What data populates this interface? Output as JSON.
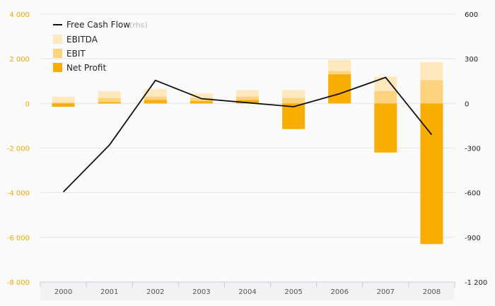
{
  "chart_data": {
    "type": "bar",
    "categories": [
      "2000",
      "2001",
      "2002",
      "2003",
      "2004",
      "2005",
      "2006",
      "2007",
      "2008"
    ],
    "series": [
      {
        "name": "EBITDA",
        "kind": "bar",
        "axis": "left",
        "color": "#fde9bd",
        "values": [
          300,
          550,
          650,
          450,
          600,
          600,
          1950,
          1200,
          1850
        ]
      },
      {
        "name": "EBIT",
        "kind": "bar",
        "axis": "left",
        "color": "#fcd480",
        "values": [
          50,
          250,
          300,
          250,
          300,
          250,
          1450,
          550,
          1050
        ]
      },
      {
        "name": "Net Profit",
        "kind": "bar",
        "axis": "left",
        "color": "#f9ad00",
        "values": [
          -150,
          50,
          150,
          100,
          150,
          -1150,
          1300,
          -2200,
          -6300
        ]
      },
      {
        "name": "Free Cash Flow",
        "note": "(rhs)",
        "kind": "line",
        "axis": "right",
        "color": "#111111",
        "values": [
          -595,
          -280,
          155,
          32,
          5,
          -22,
          65,
          175,
          -210
        ]
      }
    ],
    "left_axis": {
      "min": -8000,
      "max": 4000,
      "ticks": [
        4000,
        2000,
        0,
        -2000,
        -4000,
        -6000,
        -8000
      ],
      "tick_labels": [
        "4 000",
        "2 000",
        "0",
        "-2 000",
        "-4 000",
        "-6 000",
        "-8 000"
      ],
      "color": "#f0a800"
    },
    "right_axis": {
      "min": -1200,
      "max": 600,
      "ticks": [
        600,
        300,
        0,
        -300,
        -600,
        -900,
        -1200
      ],
      "tick_labels": [
        "600",
        "300",
        "0",
        "-300",
        "-600",
        "-900",
        "-1 200"
      ]
    },
    "grid": true,
    "legend": {
      "position": "top-left"
    }
  }
}
